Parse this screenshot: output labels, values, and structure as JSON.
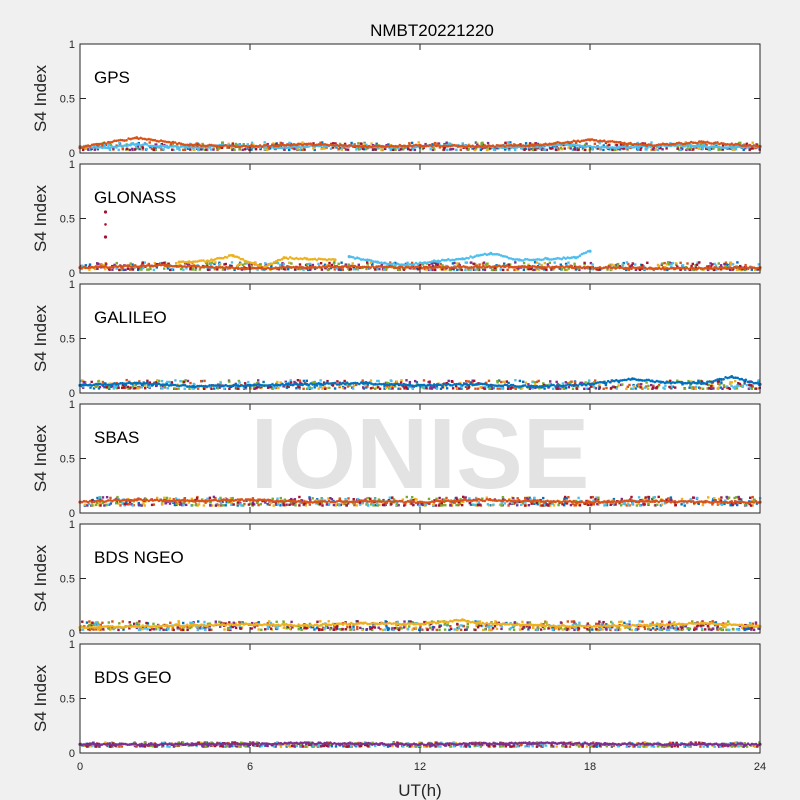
{
  "chart_data": {
    "type": "scatter",
    "title": "NMBT20221220",
    "xlabel": "UT(h)",
    "ylabel": "S4 Index",
    "xlim": [
      0,
      24
    ],
    "ylim": [
      0,
      1
    ],
    "xticks": [
      0,
      6,
      12,
      18,
      24
    ],
    "yticks": [
      0,
      0.5,
      1
    ],
    "ytick_labels": [
      "0",
      "0.5",
      "1"
    ],
    "grid": false,
    "watermark": "IONISE",
    "series_colors": [
      "#0072bd",
      "#d95319",
      "#edb120",
      "#7e2f8e",
      "#77ac30",
      "#4dbeee",
      "#a2142f"
    ],
    "panels": [
      {
        "label": "GPS",
        "typical_range": [
          0.03,
          0.1
        ],
        "traces": [
          {
            "x": [
              0.0,
              1.0,
              2.0,
              3.0,
              4.0,
              5.0,
              6.0,
              7.0,
              8.0,
              9.0,
              10.0,
              11.0,
              12.0,
              13.0,
              14.0,
              15.0,
              16.0,
              17.0,
              18.0,
              19.0,
              20.0,
              21.0,
              22.0,
              23.0,
              24.0
            ],
            "y": [
              0.06,
              0.05,
              0.08,
              0.06,
              0.05,
              0.07,
              0.06,
              0.05,
              0.06,
              0.07,
              0.06,
              0.05,
              0.06,
              0.07,
              0.06,
              0.05,
              0.06,
              0.08,
              0.06,
              0.05,
              0.06,
              0.07,
              0.06,
              0.05,
              0.06
            ]
          },
          {
            "x": [
              0.0,
              2.0,
              4.0,
              6.0,
              8.0,
              10.0,
              12.0,
              14.0,
              16.0,
              18.0,
              20.0,
              22.0,
              24.0
            ],
            "y": [
              0.05,
              0.14,
              0.07,
              0.06,
              0.08,
              0.06,
              0.07,
              0.06,
              0.07,
              0.12,
              0.07,
              0.1,
              0.06
            ]
          }
        ]
      },
      {
        "label": "GLONASS",
        "typical_range": [
          0.03,
          0.1
        ],
        "traces": [
          {
            "x": [
              0.9,
              0.9
            ],
            "y": [
              0.56,
              0.33
            ]
          },
          {
            "x": [
              3.5,
              4.5,
              5.4,
              6.5,
              7.2,
              8.0,
              9.0
            ],
            "y": [
              0.1,
              0.11,
              0.16,
              0.05,
              0.14,
              0.13,
              0.12
            ]
          },
          {
            "x": [
              9.5,
              10.5,
              11.5,
              12.5,
              13.5,
              14.5,
              15.5,
              16.5,
              17.5,
              18.0
            ],
            "y": [
              0.15,
              0.1,
              0.07,
              0.11,
              0.13,
              0.18,
              0.12,
              0.13,
              0.14,
              0.2
            ]
          },
          {
            "x": [
              0.0,
              3.0,
              6.0,
              9.0,
              12.0,
              15.0,
              18.0,
              21.0,
              24.0
            ],
            "y": [
              0.05,
              0.07,
              0.04,
              0.06,
              0.05,
              0.06,
              0.05,
              0.04,
              0.05
            ]
          }
        ]
      },
      {
        "label": "GALILEO",
        "typical_range": [
          0.04,
          0.12
        ],
        "traces": [
          {
            "x": [
              0.0,
              2.0,
              4.0,
              6.0,
              8.0,
              10.0,
              12.0,
              14.0,
              16.0,
              18.0,
              19.5,
              20.5,
              22.0,
              23.0,
              24.0
            ],
            "y": [
              0.07,
              0.09,
              0.06,
              0.07,
              0.08,
              0.09,
              0.07,
              0.08,
              0.06,
              0.08,
              0.13,
              0.1,
              0.09,
              0.15,
              0.08
            ]
          }
        ]
      },
      {
        "label": "SBAS",
        "typical_range": [
          0.07,
          0.15
        ],
        "traces": [
          {
            "x": [
              0.0,
              2.0,
              4.0,
              6.0,
              8.0,
              10.0,
              12.0,
              14.0,
              16.0,
              18.0,
              20.0,
              22.0,
              24.0
            ],
            "y": [
              0.1,
              0.12,
              0.11,
              0.12,
              0.1,
              0.11,
              0.1,
              0.12,
              0.11,
              0.1,
              0.11,
              0.1,
              0.1
            ]
          }
        ]
      },
      {
        "label": "BDS NGEO",
        "typical_range": [
          0.03,
          0.11
        ],
        "traces": [
          {
            "x": [
              0.0,
              2.0,
              4.0,
              6.0,
              8.0,
              10.0,
              12.0,
              13.5,
              14.0,
              16.0,
              18.0,
              20.0,
              22.0,
              24.0
            ],
            "y": [
              0.05,
              0.06,
              0.07,
              0.08,
              0.07,
              0.09,
              0.08,
              0.12,
              0.09,
              0.07,
              0.06,
              0.07,
              0.09,
              0.06
            ]
          }
        ]
      },
      {
        "label": "BDS GEO",
        "typical_range": [
          0.06,
          0.1
        ],
        "traces": [
          {
            "x": [
              0.0,
              4.0,
              8.0,
              12.0,
              16.0,
              20.0,
              24.0
            ],
            "y": [
              0.08,
              0.08,
              0.09,
              0.08,
              0.09,
              0.08,
              0.08
            ]
          }
        ]
      }
    ]
  }
}
